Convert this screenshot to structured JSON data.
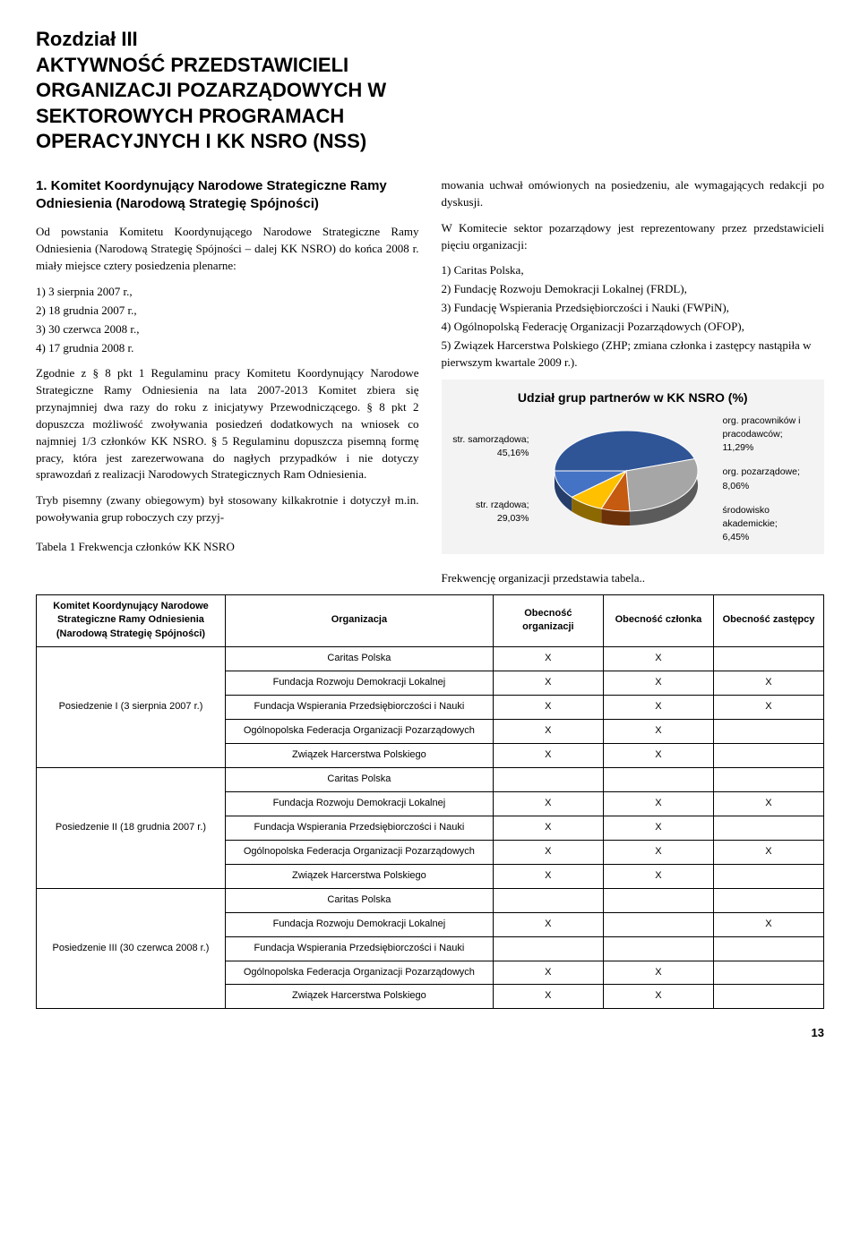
{
  "header": {
    "title": "Rozdział III\nAKTYWNOŚĆ PRZEDSTAWICIELI ORGANIZACJI POZARZĄDOWYCH W SEKTOROWYCH PROGRAMACH OPERACYJNYCH I KK NSRO (NSS)"
  },
  "left": {
    "section_title": "1. Komitet Koordynujący Narodowe Strategiczne Ramy Odniesienia (Narodową Strategię Spójności)",
    "p1": "Od powstania Komitetu Koordynującego Narodowe Strategiczne Ramy Odniesienia (Narodową Strategię Spójności – dalej KK NSRO) do końca 2008 r. miały miejsce cztery posiedzenia plenarne:",
    "dates": [
      "1)  3 sierpnia 2007 r.,",
      "2)  18 grudnia 2007 r.,",
      "3)  30 czerwca 2008 r.,",
      "4)  17 grudnia 2008 r."
    ],
    "p2": "Zgodnie z § 8 pkt 1 Regulaminu pracy Komitetu Koordynujący Narodowe Strategiczne Ramy Odniesienia na lata 2007-2013 Komitet zbiera się przynajmniej dwa razy do roku z inicjatywy Przewodniczącego. § 8 pkt 2 dopuszcza możliwość zwoływania posiedzeń dodatkowych na wniosek co najmniej 1/3 członków KK NSRO. § 5 Regulaminu dopuszcza pisemną formę pracy, która jest zarezerwowana do nagłych przypadków i nie dotyczy sprawozdań z realizacji Narodowych Strategicznych Ram Odniesienia.",
    "p3": "Tryb pisemny (zwany obiegowym) był stosowany kilkakrotnie i dotyczył m.in. powoływania grup roboczych czy przyj-",
    "table_caption": "Tabela 1 Frekwencja członków KK NSRO"
  },
  "right": {
    "p1": "mowania uchwał omówionych na posiedzeniu, ale wymagających redakcji po dyskusji.",
    "p2": "W Komitecie sektor pozarządowy jest reprezentowany przez przedstawicieli pięciu organizacji:",
    "orgs": [
      "1)  Caritas Polska,",
      "2)  Fundację Rozwoju Demokracji Lokalnej (FRDL),",
      "3)  Fundację Wspierania Przedsiębiorczości i Nauki (FWPiN),",
      "4)  Ogólnopolską Federację Organizacji Pozarządowych (OFOP),",
      "5)  Związek Harcerstwa Polskiego (ZHP; zmiana członka i zastępcy nastąpiła w pierwszym kwartale 2009 r.)."
    ],
    "chart": {
      "title": "Udział grup partnerów w KK NSRO (%)",
      "type": "pie-3d",
      "background": "#f3f3f3",
      "slices": [
        {
          "key": "samorzadowa",
          "label": "str. samorządowa;",
          "value_label": "45,16%",
          "value": 45.16,
          "color": "#2f5597"
        },
        {
          "key": "rzadowa",
          "label": "str. rządowa;",
          "value_label": "29,03%",
          "value": 29.03,
          "color": "#a6a6a6"
        },
        {
          "key": "akademickie",
          "label": "środowisko akademickie;",
          "value_label": "6,45%",
          "value": 6.45,
          "color": "#c55a11"
        },
        {
          "key": "pozarzadowe",
          "label": "org. pozarządowe;",
          "value_label": "8,06%",
          "value": 8.06,
          "color": "#ffc000"
        },
        {
          "key": "pracownikow",
          "label": "org. pracowników i pracodawców;",
          "value_label": "11,29%",
          "value": 11.29,
          "color": "#4472c4"
        }
      ],
      "label_fontsize": 10.5,
      "title_fontsize": 14
    },
    "freq_line": "Frekwencję organizacji przedstawia tabela.."
  },
  "table": {
    "columns": [
      "Komitet Koordynujący Narodowe Strategiczne Ramy Odniesienia (Narodową Strategię Spójności)",
      "Organizacja",
      "Obecność organizacji",
      "Obecność członka",
      "Obecność zastępcy"
    ],
    "sessions": [
      {
        "name": "Posiedzenie I (3 sierpnia 2007 r.)",
        "rows": [
          [
            "Caritas Polska",
            "X",
            "X",
            ""
          ],
          [
            "Fundacja Rozwoju Demokracji Lokalnej",
            "X",
            "X",
            "X"
          ],
          [
            "Fundacja Wspierania Przedsiębiorczości i Nauki",
            "X",
            "X",
            "X"
          ],
          [
            "Ogólnopolska Federacja Organizacji Pozarządowych",
            "X",
            "X",
            ""
          ],
          [
            "Związek Harcerstwa Polskiego",
            "X",
            "X",
            ""
          ]
        ]
      },
      {
        "name": "Posiedzenie II (18 grudnia 2007 r.)",
        "rows": [
          [
            "Caritas Polska",
            "",
            "",
            ""
          ],
          [
            "Fundacja Rozwoju Demokracji Lokalnej",
            "X",
            "X",
            "X"
          ],
          [
            "Fundacja Wspierania Przedsiębiorczości i Nauki",
            "X",
            "X",
            ""
          ],
          [
            "Ogólnopolska Federacja Organizacji Pozarządowych",
            "X",
            "X",
            "X"
          ],
          [
            "Związek Harcerstwa Polskiego",
            "X",
            "X",
            ""
          ]
        ]
      },
      {
        "name": "Posiedzenie III (30 czerwca 2008 r.)",
        "rows": [
          [
            "Caritas Polska",
            "",
            "",
            ""
          ],
          [
            "Fundacja Rozwoju Demokracji Lokalnej",
            "X",
            "",
            "X"
          ],
          [
            "Fundacja Wspierania Przedsiębiorczości i Nauki",
            "",
            "",
            ""
          ],
          [
            "Ogólnopolska Federacja Organizacji Pozarządowych",
            "X",
            "X",
            ""
          ],
          [
            "Związek Harcerstwa Polskiego",
            "X",
            "X",
            ""
          ]
        ]
      }
    ]
  },
  "page_number": "13"
}
